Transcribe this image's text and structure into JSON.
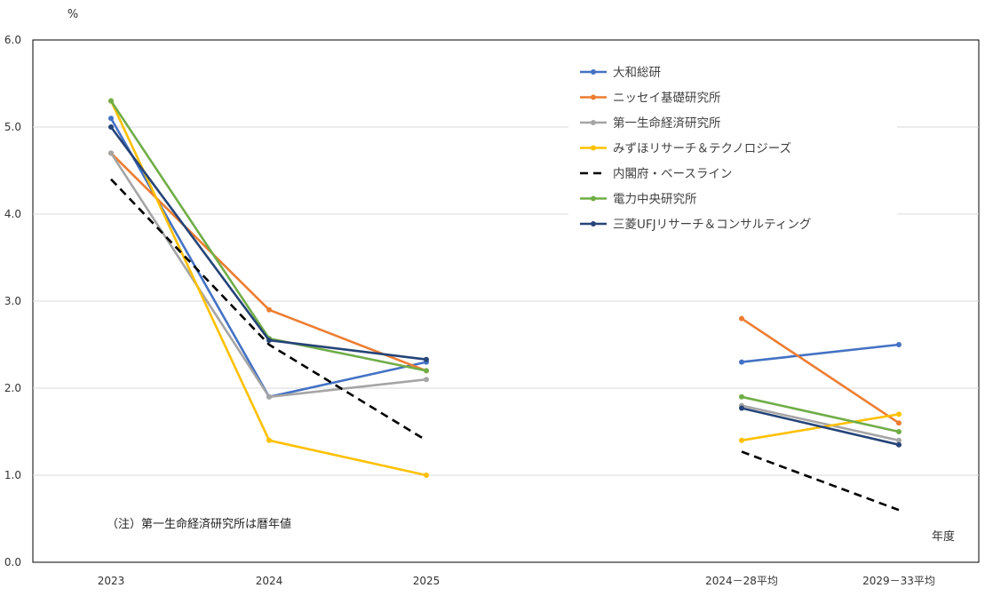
{
  "chart_data": {
    "type": "line",
    "ylabel": "%",
    "xlabel": "年度",
    "note": "（注）第一生命経済研究所は暦年値",
    "ylim": [
      0,
      6
    ],
    "yticks": [
      "0.0",
      "1.0",
      "2.0",
      "3.0",
      "4.0",
      "5.0",
      "6.0"
    ],
    "grid": true,
    "legend_position": "top-right",
    "categories": [
      "2023",
      "2024",
      "2025",
      "2024－28平均",
      "2029－33平均"
    ],
    "series": [
      {
        "name": "大和総研",
        "color": "#4472C4",
        "dashed": false,
        "values": [
          5.1,
          1.9,
          2.3,
          2.3,
          2.5
        ]
      },
      {
        "name": "ニッセイ基礎研究所",
        "color": "#ED7D31",
        "dashed": false,
        "values": [
          4.7,
          2.9,
          2.2,
          2.8,
          1.6
        ]
      },
      {
        "name": "第一生命経済研究所",
        "color": "#A5A5A5",
        "dashed": false,
        "values": [
          4.7,
          1.9,
          2.1,
          1.8,
          1.4
        ]
      },
      {
        "name": "みずほリサーチ＆テクノロジーズ",
        "color": "#FFC000",
        "dashed": false,
        "values": [
          5.3,
          1.4,
          1.0,
          1.4,
          1.7
        ]
      },
      {
        "name": "内閣府・ベースライン",
        "color": "#000000",
        "dashed": true,
        "values": [
          4.4,
          2.5,
          1.4,
          1.27,
          0.6
        ]
      },
      {
        "name": "電力中央研究所",
        "color": "#70AD47",
        "dashed": false,
        "values": [
          5.3,
          2.57,
          2.2,
          1.9,
          1.5
        ]
      },
      {
        "name": "三菱UFJリサーチ＆コンサルティング",
        "color": "#264478",
        "dashed": false,
        "values": [
          5.0,
          2.55,
          2.33,
          1.77,
          1.35
        ]
      }
    ]
  }
}
